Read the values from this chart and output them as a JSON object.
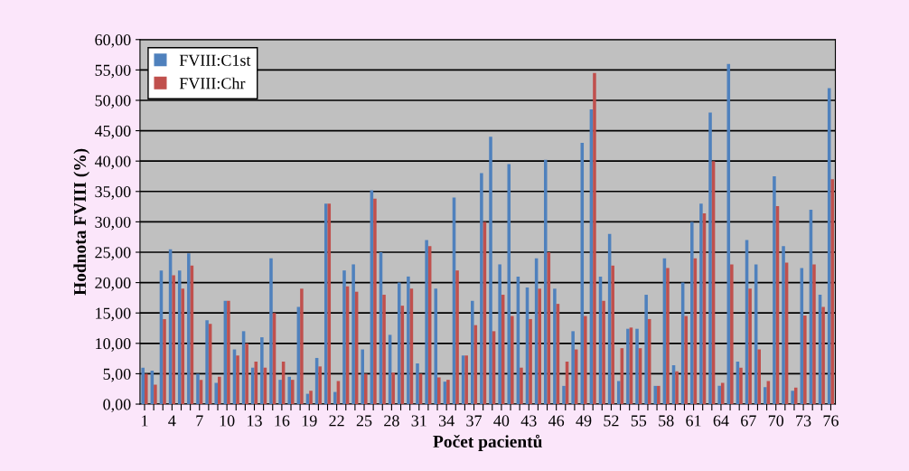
{
  "chart_data": {
    "type": "bar",
    "xlabel": "Počet pacientů",
    "ylabel": "Hodnota FVIII (%)",
    "categories": [
      "1",
      null,
      null,
      "4",
      null,
      null,
      "7",
      null,
      null,
      "10",
      null,
      null,
      "13",
      null,
      null,
      "16",
      null,
      null,
      "19",
      null,
      null,
      "22",
      null,
      null,
      "25",
      null,
      null,
      "28",
      null,
      null,
      "31",
      null,
      null,
      "34",
      null,
      null,
      "37",
      null,
      null,
      "40",
      null,
      null,
      "43",
      null,
      null,
      "46",
      null,
      null,
      "49",
      null,
      null,
      "52",
      null,
      null,
      "55",
      null,
      null,
      "58",
      null,
      null,
      "61",
      null,
      null,
      "64",
      null,
      null,
      "67",
      null,
      null,
      "70",
      null,
      null,
      "73",
      null,
      null,
      "76"
    ],
    "series": [
      {
        "name": "FVIII:C1st",
        "color": "#4f81bd",
        "values": [
          6,
          5.5,
          22,
          25.5,
          22,
          24.8,
          5,
          13.8,
          3.5,
          17,
          9,
          12,
          6,
          11,
          24,
          4,
          4.5,
          16,
          1.7,
          7.6,
          33,
          2,
          22,
          23,
          9,
          35.2,
          25,
          11.4,
          20,
          21,
          6.7,
          27,
          19,
          3.7,
          34,
          8,
          17,
          38,
          44,
          23,
          39.5,
          21,
          19.2,
          24,
          40.2,
          19,
          3,
          12,
          43,
          48.5,
          21,
          28,
          3.8,
          12.4,
          12.4,
          18,
          3,
          24,
          6.4,
          20,
          30,
          33,
          48,
          3,
          56,
          7,
          27,
          23,
          2.8,
          37.5,
          26,
          2.2,
          22.4,
          32,
          18,
          52
        ]
      },
      {
        "name": "FVIII:Chr",
        "color": "#c0504d",
        "values": [
          5,
          3.2,
          14,
          21.2,
          19,
          22.8,
          4,
          13.2,
          4.5,
          17,
          8,
          10,
          7,
          6,
          15,
          7,
          4,
          19,
          2.2,
          6.2,
          33,
          3.8,
          19.4,
          18.5,
          5,
          33.8,
          18,
          5.2,
          16.2,
          19,
          5,
          26,
          4.4,
          4,
          22,
          8,
          13,
          30,
          12,
          18,
          14.5,
          6,
          14,
          19,
          25,
          16.5,
          7,
          9,
          14.5,
          54.5,
          17,
          22.8,
          9.2,
          12.6,
          9.2,
          14,
          3,
          22.4,
          5.4,
          14.5,
          24,
          31.4,
          40,
          3.5,
          23,
          6,
          19,
          9,
          3.8,
          32.6,
          23.3,
          2.7,
          14.6,
          23,
          16,
          37
        ]
      }
    ],
    "ylim": [
      0,
      60
    ],
    "yticks": [
      {
        "value": 0,
        "label": "0,00"
      },
      {
        "value": 5,
        "label": "5,00"
      },
      {
        "value": 10,
        "label": "10,00"
      },
      {
        "value": 15,
        "label": "15,00"
      },
      {
        "value": 20,
        "label": "20,00"
      },
      {
        "value": 25,
        "label": "25,00"
      },
      {
        "value": 30,
        "label": "30,00"
      },
      {
        "value": 35,
        "label": "35,00"
      },
      {
        "value": 40,
        "label": "40,00"
      },
      {
        "value": 45,
        "label": "45,00"
      },
      {
        "value": 50,
        "label": "50,00"
      },
      {
        "value": 55,
        "label": "55,00"
      },
      {
        "value": 60,
        "label": "60,00"
      }
    ],
    "grid": "y",
    "legend": "top left"
  }
}
